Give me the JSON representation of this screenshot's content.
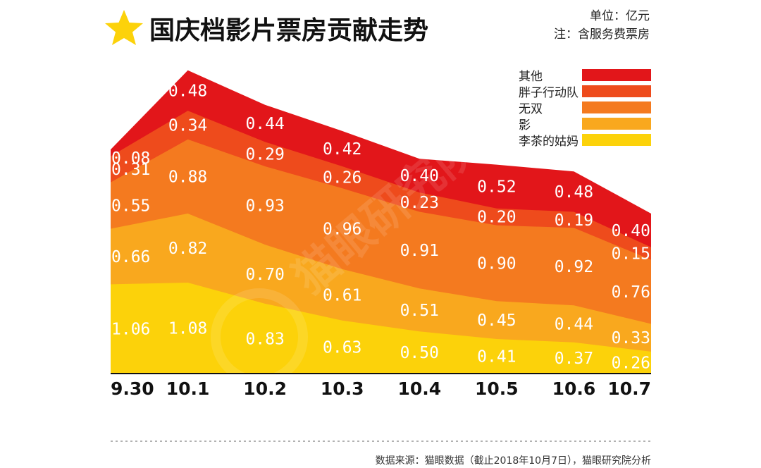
{
  "chart_data": {
    "type": "area",
    "title": "国庆档影片票房贡献走势",
    "unit_note": "单位：亿元",
    "service_note": "注：含服务费票房",
    "source": "数据来源：猫眼数据（截止2018年10月7日），猫眼研究院分析",
    "watermark": "猫眼研究院",
    "categories": [
      "9.30",
      "10.1",
      "10.2",
      "10.3",
      "10.4",
      "10.5",
      "10.6",
      "10.7"
    ],
    "ylim": [
      0,
      3.3
    ],
    "series": [
      {
        "name": "李茶的姑妈",
        "color": "#FCD20A",
        "values": [
          1.06,
          1.08,
          0.83,
          0.63,
          0.5,
          0.41,
          0.37,
          0.26
        ]
      },
      {
        "name": "影",
        "color": "#F9A81E",
        "values": [
          0.66,
          0.82,
          0.7,
          0.61,
          0.51,
          0.45,
          0.44,
          0.33
        ]
      },
      {
        "name": "无双",
        "color": "#F47A1F",
        "values": [
          0.55,
          0.88,
          0.93,
          0.96,
          0.91,
          0.9,
          0.92,
          0.76
        ]
      },
      {
        "name": "胖子行动队",
        "color": "#EE4B1C",
        "values": [
          0.31,
          0.34,
          0.29,
          0.26,
          0.23,
          0.2,
          0.19,
          0.15
        ]
      },
      {
        "name": "其他",
        "color": "#E2161A",
        "values": [
          0.08,
          0.48,
          0.44,
          0.42,
          0.4,
          0.52,
          0.48,
          0.4
        ]
      }
    ],
    "legend_order": [
      "其他",
      "胖子行动队",
      "无双",
      "影",
      "李茶的姑妈"
    ]
  }
}
